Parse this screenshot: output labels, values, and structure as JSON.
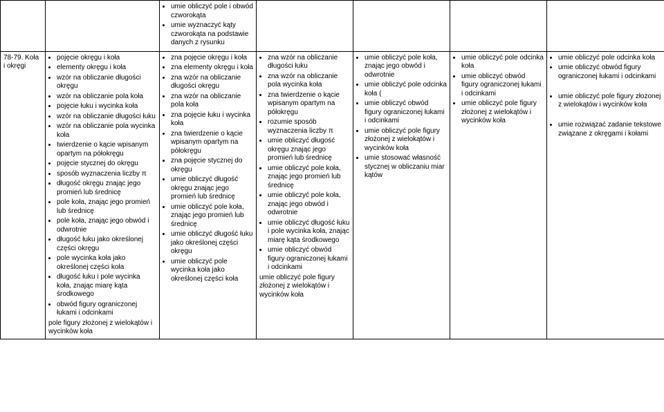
{
  "columns": {
    "w0": 65,
    "w1": 165,
    "w2": 140,
    "w3": 140,
    "w4": 140,
    "w5": 140,
    "w6": 170
  },
  "row0": {
    "c2": [
      "umie obliczyć pole i obwód czworokąta",
      "umie wyznaczyć kąty czworokąta na podstawie danych z rysunku"
    ]
  },
  "row1": {
    "label": "78-79. Koła i okręgi",
    "c1": [
      "pojęcie okręgu i koła",
      "elementy okręgu i koła",
      "wzór na obliczanie długości okręgu",
      "wzór na obliczanie pola koła",
      "pojęcie łuku i wycinka koła",
      "wzór na obliczanie długości łuku",
      "wzór na obliczanie pola wycinka koła",
      "twierdzenie o kącie wpisanym opartym na półokręgu",
      "pojęcie stycznej do okręgu",
      "sposób wyznaczenia liczby π",
      "długość okręgu znając jego promień lub średnicę",
      "pole koła, znając jego promień lub średnicę",
      "pole koła, znając jego obwód i odwrotnie",
      "długość łuku jako określonej części okręgu",
      "pole wycinka koła jako określonej części koła",
      "długość łuku i pole wycinka koła, znając miarę kąta środkowego",
      "obwód figury ograniczonej łukami i odcinkami"
    ],
    "c1_tail": "pole figury złożonej z wielokątów i wycinków koła",
    "c2": [
      "zna pojęcie okręgu i koła",
      "zna elementy okręgu i koła",
      "zna wzór na obliczanie długości okręgu",
      "zna wzór na obliczanie pola koła",
      "zna pojęcie łuku i wycinka koła",
      "zna twierdzenie o kącie wpisanym opartym na półokręgu",
      "zna pojęcie stycznej do okręgu",
      "umie obliczyć długość okręgu znając jego promień lub średnicę",
      "umie obliczyć pole koła, znając jego promień lub średnicę",
      "umie obliczyć długość łuku jako określonej części okręgu",
      "umie obliczyć pole wycinka koła jako określonej części koła"
    ],
    "c3": [
      "zna wzór na obliczanie długości łuku",
      "zna wzór na obliczanie pola wycinka koła",
      "zna twierdzenie o kącie wpisanym opartym na półokręgu",
      "rozumie sposób wyznaczenia liczby π",
      "umie obliczyć długość okręgu znając jego promień lub średnicę",
      "umie obliczyć pole koła, znając jego promień lub średnicę",
      "umie obliczyć pole koła, znając jego obwód i odwrotnie",
      "umie obliczyć długość łuku i pole wycinka koła, znając miarę kąta środkowego",
      "umie obliczyć obwód figury ograniczonej łukami i odcinkami"
    ],
    "c3_tail": "umie obliczyć pole figury złożonej z wielokątów i wycinków koła",
    "c4": [
      "umie obliczyć pole koła, znając jego obwód i odwrotnie",
      "umie obliczyć pole odcinka koła (",
      "umie obliczyć obwód figury ograniczonej łukami i odcinkami",
      "umie obliczyć pole figury złożonej z wielokątów i wycinków koła",
      "umie stosować własność stycznej w obliczaniu miar kątów"
    ],
    "c5": [
      "umie obliczyć pole odcinka koła",
      "umie obliczyć obwód figury ograniczonej łukami i odcinkami",
      "umie obliczyć pole figury złożonej z wielokątów i wycinków koła"
    ],
    "c6": [
      "umie obliczyć pole odcinka koła",
      "umie obliczyć obwód figury ograniczonej łukami i odcinkami",
      "",
      "umie obliczyć pole figury złożonej z wielokątów i wycinków koła",
      "",
      "umie rozwiązać zadanie tekstowe związane z okręgami i kołami"
    ]
  }
}
